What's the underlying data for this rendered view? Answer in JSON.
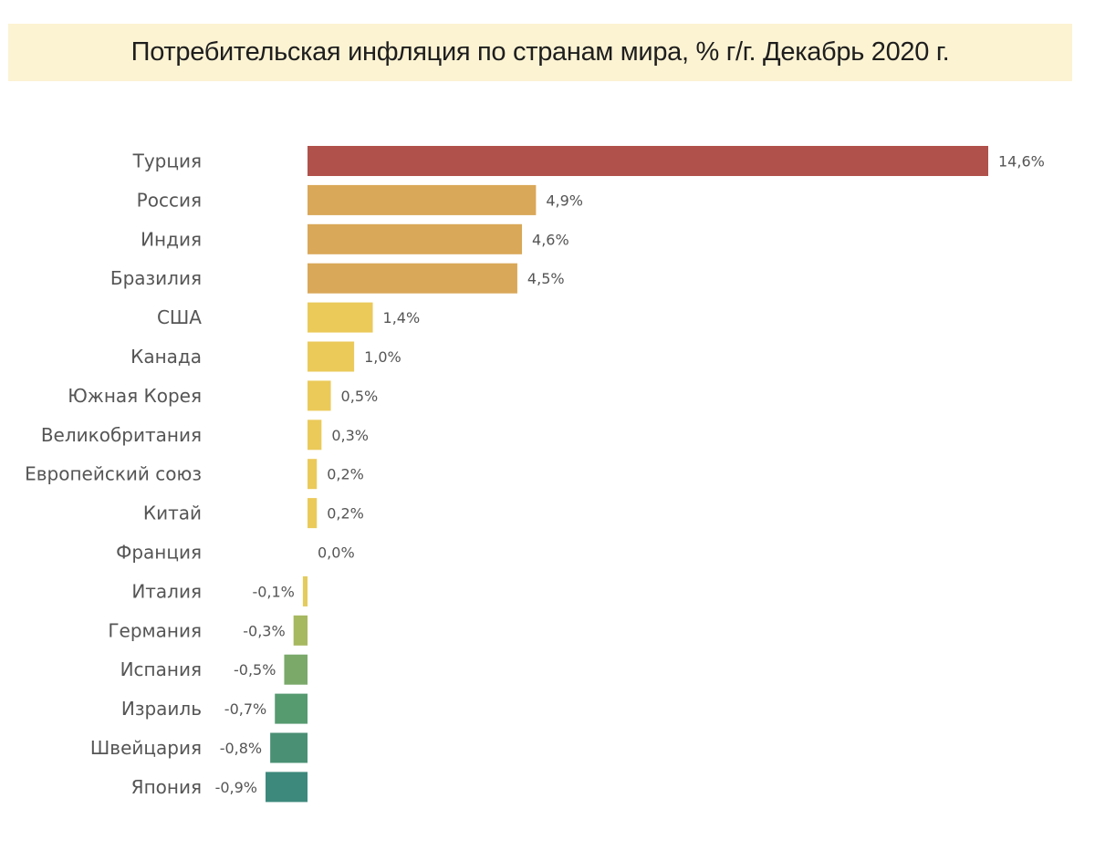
{
  "chart_data": {
    "type": "bar",
    "orientation": "horizontal",
    "title": "Потребительская инфляция по странам мира, % г/г. Декабрь 2020 г.",
    "categories": [
      "Турция",
      "Россия",
      "Индия",
      "Бразилия",
      "США",
      "Канада",
      "Южная Корея",
      "Великобритания",
      "Европейский союз",
      "Китай",
      "Франция",
      "Италия",
      "Германия",
      "Испания",
      "Израиль",
      "Швейцария",
      "Япония"
    ],
    "values": [
      14.6,
      4.9,
      4.6,
      4.5,
      1.4,
      1.0,
      0.5,
      0.3,
      0.2,
      0.2,
      0.0,
      -0.1,
      -0.3,
      -0.5,
      -0.7,
      -0.8,
      -0.9
    ],
    "value_labels": [
      "14,6%",
      "4,9%",
      "4,6%",
      "4,5%",
      "1,4%",
      "1,0%",
      "0,5%",
      "0,3%",
      "0,2%",
      "0,2%",
      "0,0%",
      "-0,1%",
      "-0,3%",
      "-0,5%",
      "-0,7%",
      "-0,8%",
      "-0,9%"
    ],
    "colors": [
      "#b0514b",
      "#d9a858",
      "#d9a858",
      "#d9a858",
      "#ebca5a",
      "#ebca5a",
      "#ebca5a",
      "#ebca5a",
      "#ebca5a",
      "#ebca5a",
      "#ebca5a",
      "#e3cb5e",
      "#a6b860",
      "#7aa96a",
      "#569a70",
      "#4a9074",
      "#3d897c"
    ],
    "grid": false,
    "legend": "none"
  }
}
